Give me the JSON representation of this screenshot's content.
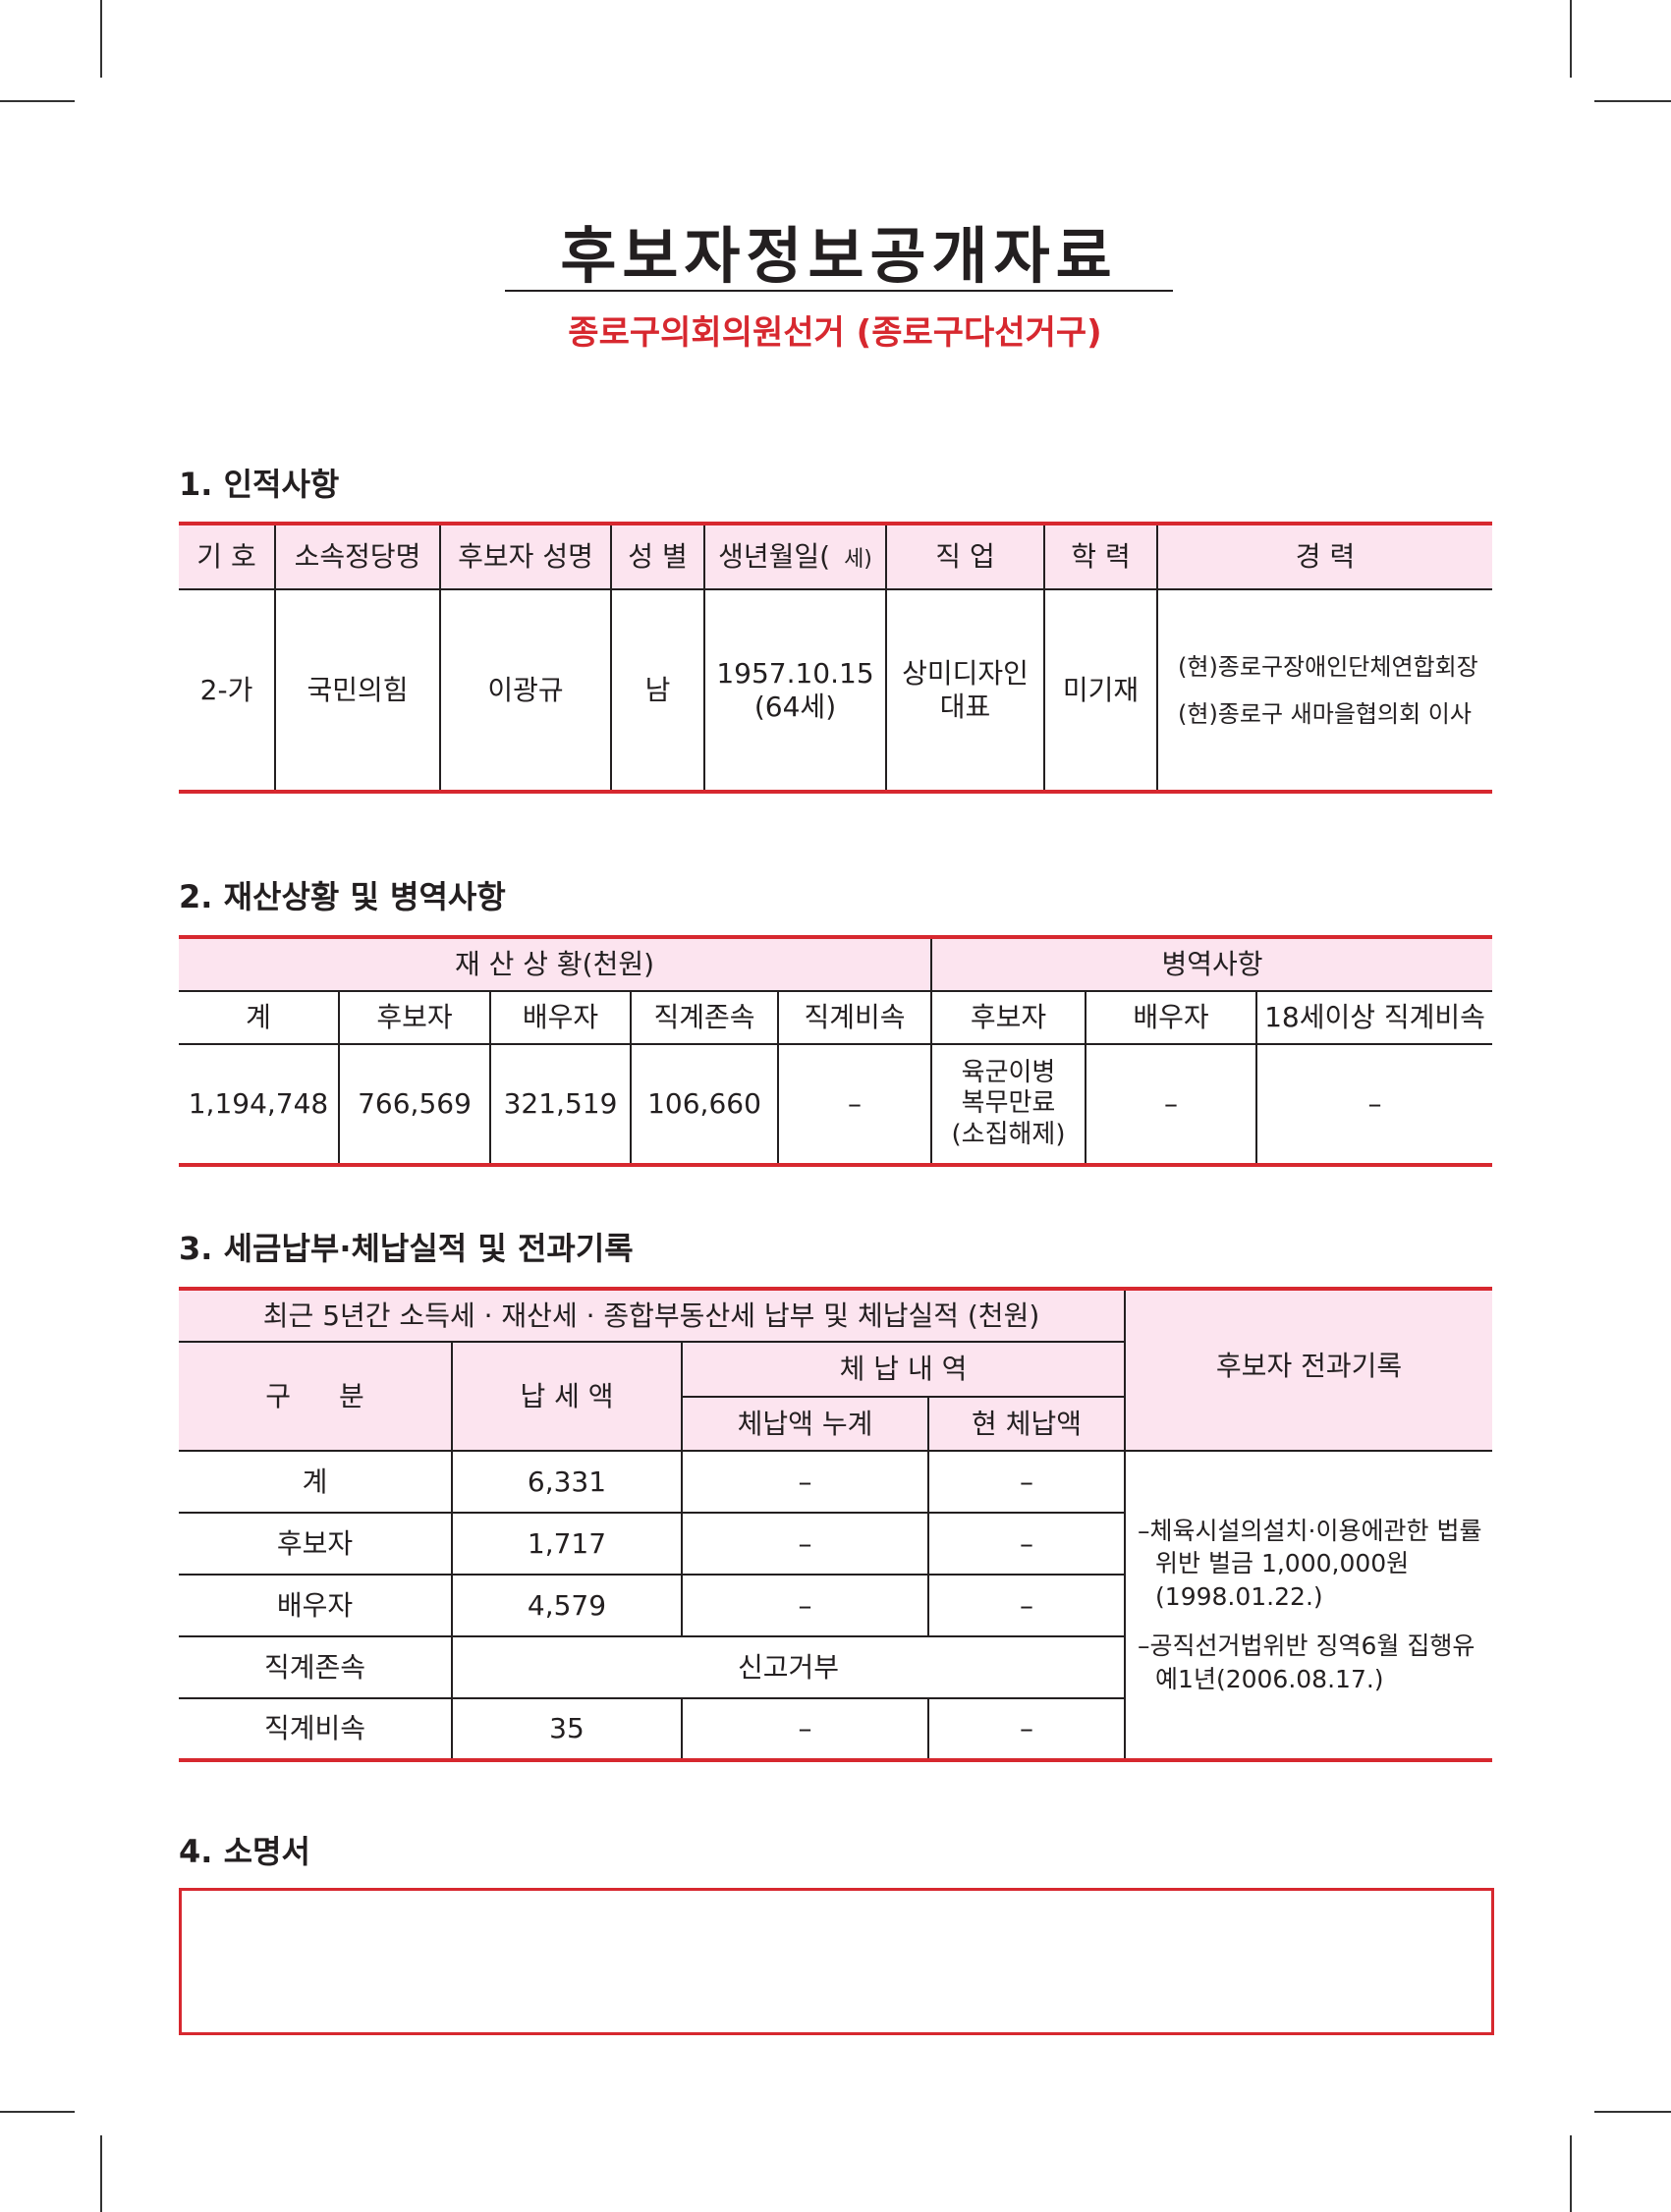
{
  "title": "후보자정보공개자료",
  "subtitle": "종로구의회의원선거 (종로구다선거구)",
  "s1": {
    "heading": "1. 인적사항",
    "headers": [
      "기 호",
      "소속정당명",
      "후보자 성명",
      "성 별",
      "생년월일(",
      "세)",
      "직 업",
      "학 력",
      "경 력"
    ],
    "row": {
      "number": "2-가",
      "party": "국민의힘",
      "name": "이광규",
      "sex": "남",
      "birth": "1957.10.15",
      "age": "(64세)",
      "job1": "상미디자인",
      "job2": "대표",
      "edu": "미기재",
      "career": [
        "(현)종로구장애인단체연합회장",
        "(현)종로구 새마을협의회 이사"
      ]
    }
  },
  "s2": {
    "heading": "2. 재산상황 및 병역사항",
    "group1": "재 산 상 황(천원)",
    "group2": "병역사항",
    "headers": [
      "계",
      "후보자",
      "배우자",
      "직계존속",
      "직계비속",
      "후보자",
      "배우자",
      "18세이상 직계비속"
    ],
    "values": [
      "1,194,748",
      "766,569",
      "321,519",
      "106,660",
      "–",
      "육군이병",
      "복무만료",
      "(소집해제)",
      "–",
      "–"
    ]
  },
  "s3": {
    "heading": "3. 세금납부·체납실적 및 전과기록",
    "group": "최근 5년간 소득세 · 재산세 · 종합부동산세 납부 및 체납실적 (천원)",
    "h_div": "구 분",
    "h_paid": "납 세 액",
    "h_arrears": "체 납 내 역",
    "h_cum": "체납액 누계",
    "h_cur": "현 체납액",
    "h_crim": "후보자 전과기록",
    "rows": [
      {
        "label": "계",
        "paid": "6,331",
        "cum": "–",
        "cur": "–"
      },
      {
        "label": "후보자",
        "paid": "1,717",
        "cum": "–",
        "cur": "–"
      },
      {
        "label": "배우자",
        "paid": "4,579",
        "cum": "–",
        "cur": "–"
      },
      {
        "label": "직계존속",
        "refused": "신고거부"
      },
      {
        "label": "직계비속",
        "paid": "35",
        "cum": "–",
        "cur": "–"
      }
    ],
    "criminal": [
      "–체육시설의설치·이용에관한 법률위반 벌금 1,000,000원 (1998.01.22.)",
      "–공직선거법위반 징역6월 집행유예1년(2006.08.17.)"
    ]
  },
  "s4": {
    "heading": "4. 소명서"
  },
  "colors": {
    "accent": "#d7282f",
    "header_bg": "#fce4ef"
  }
}
